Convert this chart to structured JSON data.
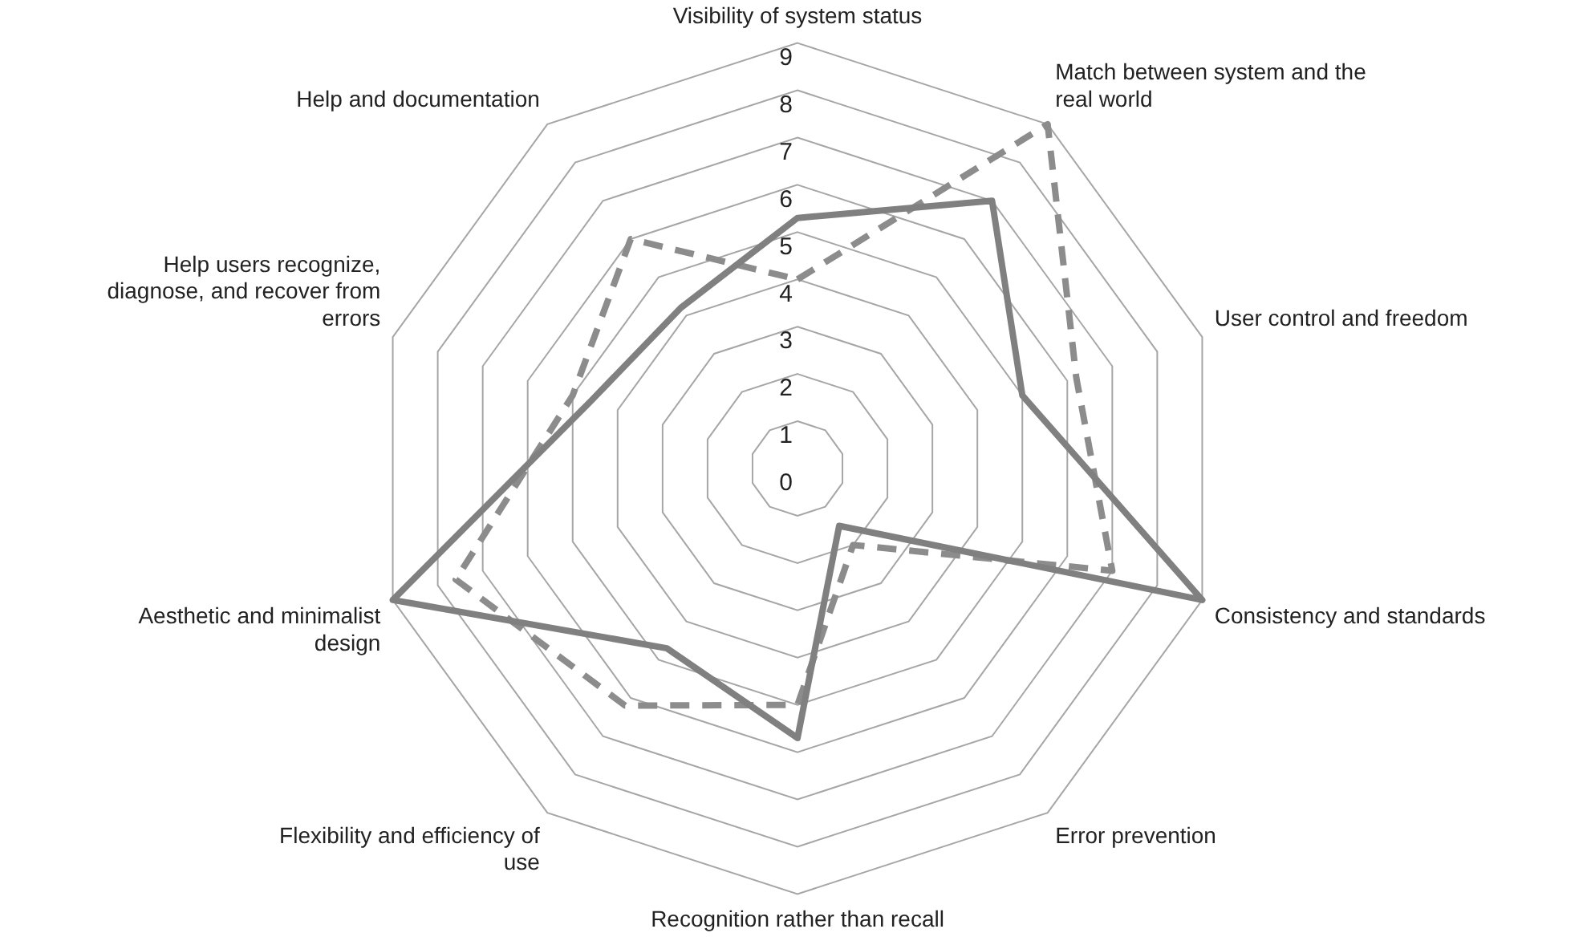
{
  "chart_data": {
    "type": "radar",
    "categories": [
      "Visibility of system status",
      "Match between system and the real world",
      "User control and freedom",
      "Consistency and standards",
      "Error prevention",
      "Recognition rather than recall",
      "Flexibility and efficiency of use",
      "Aesthetic and minimalist design",
      "Help users recognize, diagnose, and recover from errors",
      "Help and documentation"
    ],
    "series": [
      {
        "color": "#808080",
        "line_style": "solid",
        "values": [
          5.3,
          7,
          5,
          9,
          1.5,
          5.7,
          4.7,
          9,
          4.6,
          4.2
        ]
      },
      {
        "color": "#8c8c8c",
        "line_style": "dashed",
        "values": [
          4,
          9,
          6.2,
          7,
          2,
          5,
          6.2,
          7.6,
          5,
          6
        ]
      }
    ],
    "ylim": [
      0,
      9
    ],
    "yticks": [
      0,
      1,
      2,
      3,
      4,
      5,
      6,
      7,
      8,
      9
    ],
    "grid": true,
    "legend": false,
    "marker": "none"
  }
}
